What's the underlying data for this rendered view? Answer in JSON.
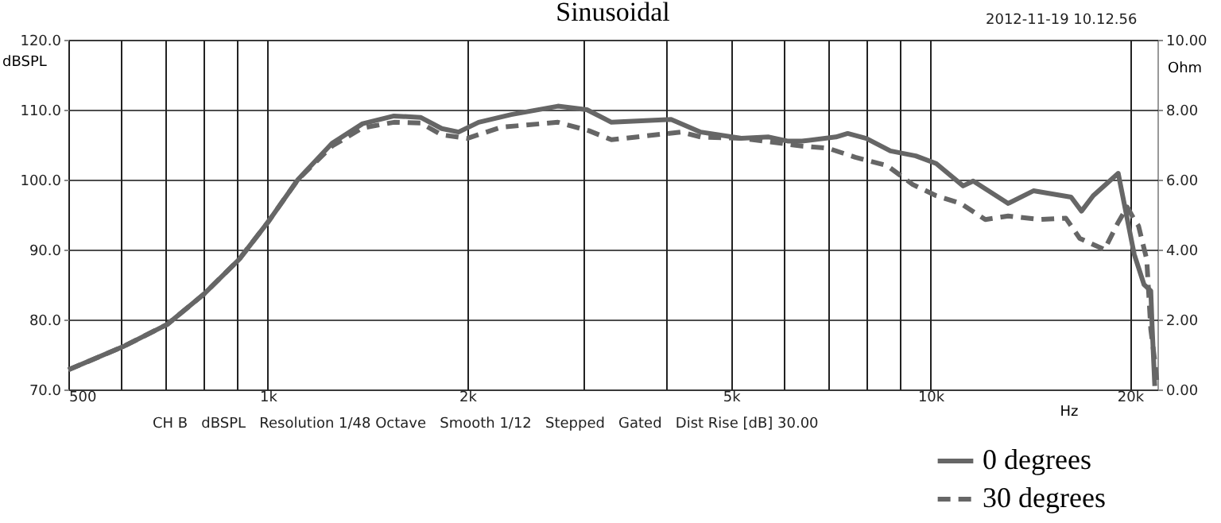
{
  "chart_data": {
    "type": "line",
    "title": "Sinusoidal",
    "xlabel": "Hz",
    "ylabel": "dBSPL",
    "y2label": "Ohm",
    "annotations": [
      "2012-11-19 10.12.56",
      "CH B   dBSPL   Resolution 1/48 Octave   Smooth 1/12   Stepped   Gated   Dist Rise [dB] 30.00"
    ],
    "log": "x",
    "grid": true,
    "legend": "bottom right",
    "xlim": [
      500,
      22000
    ],
    "xticks": [
      500,
      {
        "value": 600,
        "label": null
      },
      {
        "value": 700,
        "label": null
      },
      {
        "value": 800,
        "label": null
      },
      {
        "value": 900,
        "label": null
      },
      {
        "value": 1000,
        "label": "1k"
      },
      {
        "value": 2000,
        "label": "2k"
      },
      {
        "value": 3000,
        "label": null
      },
      {
        "value": 4000,
        "label": null
      },
      {
        "value": 5000,
        "label": "5k"
      },
      {
        "value": 6000,
        "label": null
      },
      {
        "value": 7000,
        "label": null
      },
      {
        "value": 8000,
        "label": null
      },
      {
        "value": 9000,
        "label": null
      },
      {
        "value": 10000,
        "label": "10k"
      },
      {
        "value": 20000,
        "label": "20k"
      }
    ],
    "ylim": [
      70,
      120
    ],
    "yticks": [
      {
        "value": 70,
        "label": "70.0"
      },
      {
        "value": 80,
        "label": "80.0"
      },
      {
        "value": 90,
        "label": "90.0"
      },
      {
        "value": 100,
        "label": "100.0"
      },
      {
        "value": 110,
        "label": "110.0"
      },
      {
        "value": 120,
        "label": "120.0"
      }
    ],
    "y2lim": [
      0,
      10
    ],
    "y2ticks": [
      {
        "value": 0,
        "label": "0.00"
      },
      {
        "value": 2,
        "label": "2.00"
      },
      {
        "value": 4,
        "label": "4.00"
      },
      {
        "value": 6,
        "label": "6.00"
      },
      {
        "value": 8,
        "label": "8.00"
      },
      {
        "value": 10,
        "label": "10.00"
      }
    ],
    "series": [
      {
        "name": "0 degrees",
        "color": "#666666",
        "line_style": "solid",
        "x": [
          500,
          604,
          705,
          800,
          905,
          1000,
          1110,
          1250,
          1390,
          1550,
          1700,
          1830,
          1940,
          2080,
          2330,
          2740,
          3030,
          3300,
          4060,
          4500,
          5180,
          5700,
          6100,
          6400,
          7200,
          7500,
          8000,
          8700,
          9500,
          10200,
          11200,
          11600,
          13100,
          14300,
          16300,
          16900,
          17600,
          19200,
          20300,
          21000,
          21500,
          21600,
          21800
        ],
        "values": [
          72.8,
          76.1,
          79.3,
          83.6,
          88.6,
          93.9,
          100,
          105.2,
          108,
          109.1,
          108.9,
          107.3,
          106.8,
          108.2,
          109.3,
          110.5,
          110,
          108.2,
          108.6,
          106.8,
          105.9,
          106.1,
          105.5,
          105.5,
          106.1,
          106.6,
          105.9,
          104.1,
          103.4,
          102.3,
          99.1,
          99.8,
          96.6,
          98.4,
          97.5,
          95.5,
          97.7,
          100.9,
          89.3,
          85,
          84.1,
          79,
          70.5
        ]
      },
      {
        "name": "30 degrees",
        "color": "#666666",
        "line_style": "dashed",
        "x": [
          500,
          604,
          705,
          800,
          905,
          1000,
          1110,
          1250,
          1390,
          1550,
          1700,
          1830,
          2000,
          2250,
          2740,
          3050,
          3300,
          4200,
          4500,
          5200,
          6400,
          7000,
          7700,
          8600,
          9400,
          10200,
          11100,
          12100,
          13100,
          14600,
          16000,
          16800,
          18300,
          19200,
          19800,
          20300,
          20600,
          21200,
          21500,
          21800,
          22000
        ],
        "values": [
          72.8,
          76.1,
          79.3,
          83.6,
          88.6,
          93.9,
          100,
          104.8,
          107.4,
          108.2,
          108.1,
          106.4,
          105.9,
          107.5,
          108.2,
          107,
          105.7,
          106.8,
          106.1,
          105.9,
          104.8,
          104.5,
          103.2,
          102,
          99.3,
          97.7,
          96.6,
          94.3,
          94.8,
          94.3,
          94.5,
          91.6,
          90,
          93.9,
          96.1,
          94.3,
          93.4,
          88.6,
          78.6,
          74.1,
          70.5
        ]
      }
    ]
  }
}
